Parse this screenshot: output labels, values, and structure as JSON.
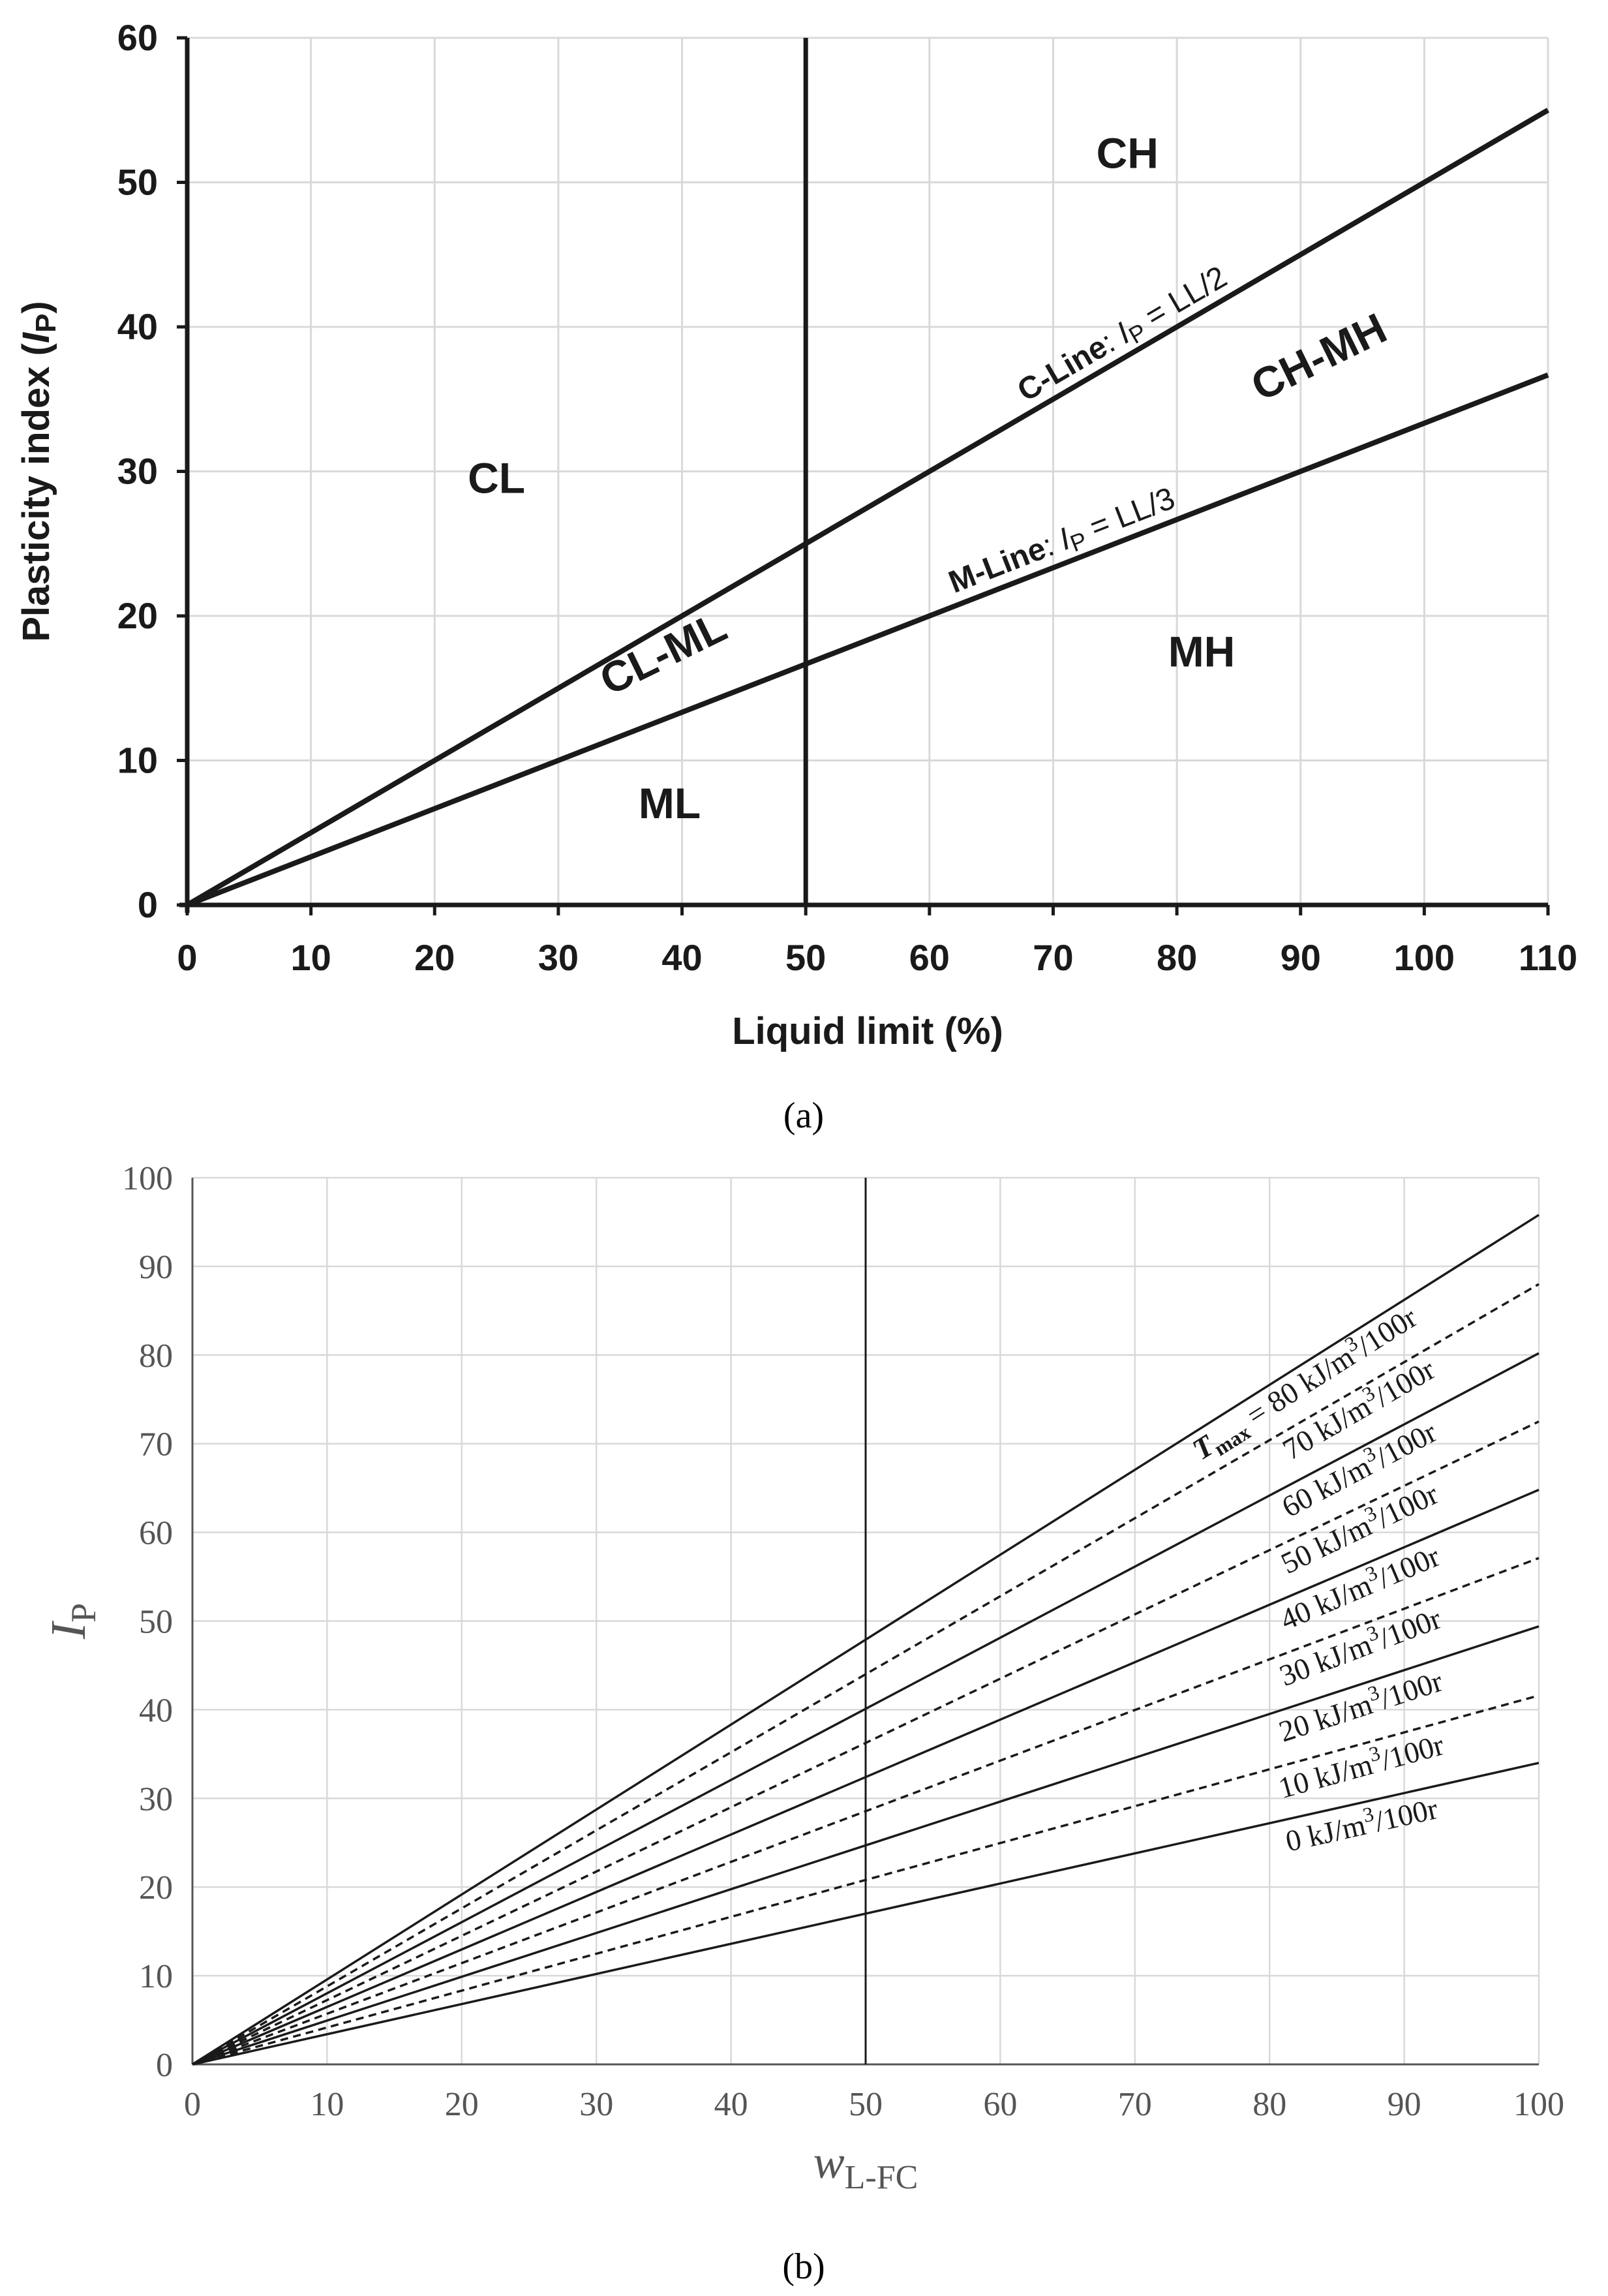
{
  "chart_data": [
    {
      "panel": "a",
      "type": "line",
      "caption": "(a)",
      "xlabel": "Liquid limit  (%)",
      "ylabel_main": "Plasticity index (",
      "ylabel_italic": "I",
      "ylabel_sub": "P",
      "ylabel_end": ")",
      "xlim": [
        0,
        110
      ],
      "ylim": [
        0,
        60
      ],
      "xticks": [
        0,
        10,
        20,
        30,
        40,
        50,
        60,
        70,
        80,
        90,
        100,
        110
      ],
      "yticks": [
        0,
        10,
        20,
        30,
        40,
        50,
        60
      ],
      "grid": true,
      "vline": 50,
      "series": [
        {
          "name": "C-Line",
          "x": [
            0,
            110
          ],
          "y": [
            0,
            55
          ]
        },
        {
          "name": "M-Line",
          "x": [
            0,
            110
          ],
          "y": [
            0,
            36.67
          ]
        }
      ],
      "line_labels": [
        {
          "id": "c-line",
          "prefix": "C-Line",
          "sep": ":  ",
          "italic": "I",
          "sub": "P",
          "rest": " = LL/2",
          "x": 76,
          "slope": 0.5
        },
        {
          "id": "m-line",
          "prefix": "M-Line",
          "sep": ":  ",
          "italic": "I",
          "sub": "P",
          "rest": " = LL/3",
          "x": 71,
          "slope": 0.3333
        }
      ],
      "regions": [
        {
          "label": "CH",
          "x": 76,
          "y": 51
        },
        {
          "label": "CH-MH",
          "x": 92,
          "y": 37
        },
        {
          "label": "CL",
          "x": 25,
          "y": 28.5
        },
        {
          "label": "CL-ML",
          "x": 39,
          "y": 16.5
        },
        {
          "label": "MH",
          "x": 82,
          "y": 16.5
        },
        {
          "label": "ML",
          "x": 39,
          "y": 6
        }
      ]
    },
    {
      "panel": "b",
      "type": "line",
      "caption": "(b)",
      "xlabel_main": "w",
      "xlabel_sub": "L-FC",
      "ylabel_main": "I",
      "ylabel_sub": "P",
      "xlim": [
        0,
        100
      ],
      "ylim": [
        0,
        100
      ],
      "xticks": [
        0,
        10,
        20,
        30,
        40,
        50,
        60,
        70,
        80,
        90,
        100
      ],
      "yticks": [
        0,
        10,
        20,
        30,
        40,
        50,
        60,
        70,
        80,
        90,
        100
      ],
      "grid": true,
      "vline": 50,
      "series": [
        {
          "name": "T_max = 80 kJ/m3/100r",
          "x": [
            0,
            100
          ],
          "y": [
            0,
            95.8
          ],
          "dash": false
        },
        {
          "name": "70 kJ/m3/100r",
          "x": [
            0,
            100
          ],
          "y": [
            0,
            88.0
          ],
          "dash": true
        },
        {
          "name": "60 kJ/m3/100r",
          "x": [
            0,
            100
          ],
          "y": [
            0,
            80.2
          ],
          "dash": false
        },
        {
          "name": "50 kJ/m3/100r",
          "x": [
            0,
            100
          ],
          "y": [
            0,
            72.5
          ],
          "dash": true
        },
        {
          "name": "40 kJ/m3/100r",
          "x": [
            0,
            100
          ],
          "y": [
            0,
            64.8
          ],
          "dash": false
        },
        {
          "name": "30 kJ/m3/100r",
          "x": [
            0,
            100
          ],
          "y": [
            0,
            57.1
          ],
          "dash": true
        },
        {
          "name": "20 kJ/m3/100r",
          "x": [
            0,
            100
          ],
          "y": [
            0,
            49.4
          ],
          "dash": false
        },
        {
          "name": "10 kJ/m3/100r",
          "x": [
            0,
            100
          ],
          "y": [
            0,
            41.6
          ],
          "dash": true
        },
        {
          "name": "0 kJ/m3/100r",
          "x": [
            0,
            100
          ],
          "y": [
            0,
            34.0
          ],
          "dash": false
        }
      ],
      "line_labels": [
        {
          "id": "t80",
          "lead": "T",
          "lead_sub": "max",
          "text": " = 80 kJ/m",
          "sup": "3",
          "tail": "/100r",
          "x": 83,
          "slope": 0.958
        },
        {
          "id": "t70",
          "text": "70 kJ/m",
          "sup": "3",
          "tail": "/100r",
          "x": 87,
          "slope": 0.88
        },
        {
          "id": "t60",
          "text": "60 kJ/m",
          "sup": "3",
          "tail": "/100r",
          "x": 87,
          "slope": 0.802
        },
        {
          "id": "t50",
          "text": "50 kJ/m",
          "sup": "3",
          "tail": "/100r",
          "x": 87,
          "slope": 0.725
        },
        {
          "id": "t40",
          "text": "40 kJ/m",
          "sup": "3",
          "tail": "/100r",
          "x": 87,
          "slope": 0.648
        },
        {
          "id": "t30",
          "text": "30 kJ/m",
          "sup": "3",
          "tail": "/100r",
          "x": 87,
          "slope": 0.571
        },
        {
          "id": "t20",
          "text": "20 kJ/m",
          "sup": "3",
          "tail": "/100r",
          "x": 87,
          "slope": 0.494
        },
        {
          "id": "t10",
          "text": "10 kJ/m",
          "sup": "3",
          "tail": "/100r",
          "x": 87,
          "slope": 0.416
        },
        {
          "id": "t0",
          "text": "0 kJ/m",
          "sup": "3",
          "tail": "/100r",
          "x": 87,
          "slope": 0.34
        }
      ]
    }
  ]
}
